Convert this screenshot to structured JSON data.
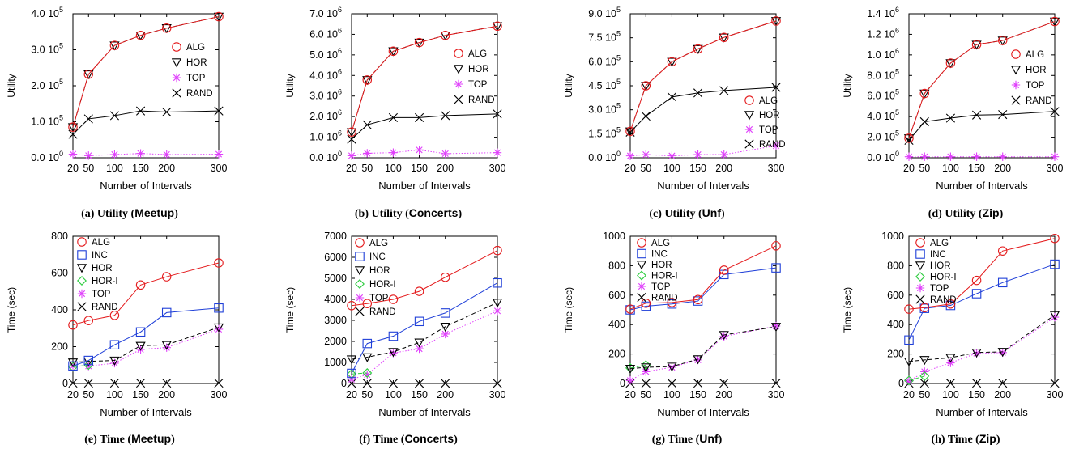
{
  "figure": {
    "captions": [
      {
        "prefix": "(a) Utility (",
        "name": "Meetup",
        "suffix": ")"
      },
      {
        "prefix": "(b) Utility (",
        "name": "Concerts",
        "suffix": ")"
      },
      {
        "prefix": "(c) Utility (",
        "name": "Unf",
        "suffix": ")"
      },
      {
        "prefix": "(d) Utility (",
        "name": "Zip",
        "suffix": ")"
      },
      {
        "prefix": "(e) Time (",
        "name": "Meetup",
        "suffix": ")"
      },
      {
        "prefix": "(f) Time (",
        "name": "Concerts",
        "suffix": ")"
      },
      {
        "prefix": "(g) Time (",
        "name": "Unf",
        "suffix": ")"
      },
      {
        "prefix": "(h) Time (",
        "name": "Zip",
        "suffix": ")"
      }
    ]
  },
  "styles": {
    "ALG": {
      "color": "#e41a1c",
      "marker": "circle",
      "dash": "solid"
    },
    "INC": {
      "color": "#1f3fd8",
      "marker": "square",
      "dash": "solid"
    },
    "HOR": {
      "color": "#000000",
      "marker": "triangle-down",
      "dash": "dashed"
    },
    "HOR-I": {
      "color": "#2ecc40",
      "marker": "diamond",
      "dash": "dashed"
    },
    "TOP": {
      "color": "#e040fb",
      "marker": "star",
      "dash": "dotted"
    },
    "RAND": {
      "color": "#000000",
      "marker": "x",
      "dash": "solid"
    }
  },
  "chart_data": [
    {
      "type": "line",
      "panel": "a",
      "xlabel": "Number of Intervals",
      "ylabel": "Utility",
      "x": [
        20,
        50,
        100,
        150,
        200,
        300
      ],
      "xlim": [
        20,
        300
      ],
      "ylim": [
        0,
        400000
      ],
      "yticks": [
        {
          "v": 0,
          "mant": "0.0",
          "exp": "0"
        },
        {
          "v": 100000,
          "mant": "1.0",
          "exp": "5"
        },
        {
          "v": 200000,
          "mant": "2.0",
          "exp": "5"
        },
        {
          "v": 300000,
          "mant": "3.0",
          "exp": "5"
        },
        {
          "v": 400000,
          "mant": "4.0",
          "exp": "5"
        }
      ],
      "legend": [
        "ALG",
        "HOR",
        "TOP",
        "RAND"
      ],
      "series": [
        {
          "name": "ALG",
          "values": [
            85000,
            232000,
            312000,
            340000,
            360000,
            392000
          ]
        },
        {
          "name": "HOR",
          "values": [
            85000,
            232000,
            312000,
            340000,
            360000,
            392000
          ]
        },
        {
          "name": "TOP",
          "values": [
            10000,
            6000,
            9000,
            12000,
            9000,
            10000
          ]
        },
        {
          "name": "RAND",
          "values": [
            65000,
            108000,
            117000,
            130000,
            127000,
            130000
          ]
        }
      ]
    },
    {
      "type": "line",
      "panel": "b",
      "xlabel": "Number of Intervals",
      "ylabel": "Utility",
      "x": [
        20,
        50,
        100,
        150,
        200,
        300
      ],
      "xlim": [
        20,
        300
      ],
      "ylim": [
        0,
        7000000
      ],
      "yticks": [
        {
          "v": 0,
          "mant": "0.0",
          "exp": "0"
        },
        {
          "v": 1000000,
          "mant": "1.0",
          "exp": "6"
        },
        {
          "v": 2000000,
          "mant": "2.0",
          "exp": "6"
        },
        {
          "v": 3000000,
          "mant": "3.0",
          "exp": "6"
        },
        {
          "v": 4000000,
          "mant": "4.0",
          "exp": "6"
        },
        {
          "v": 5000000,
          "mant": "5.0",
          "exp": "6"
        },
        {
          "v": 6000000,
          "mant": "6.0",
          "exp": "6"
        },
        {
          "v": 7000000,
          "mant": "7.0",
          "exp": "6"
        }
      ],
      "legend": [
        "ALG",
        "HOR",
        "TOP",
        "RAND"
      ],
      "series": [
        {
          "name": "ALG",
          "values": [
            1250000,
            3780000,
            5180000,
            5600000,
            5950000,
            6400000
          ]
        },
        {
          "name": "HOR",
          "values": [
            1250000,
            3780000,
            5180000,
            5600000,
            5950000,
            6400000
          ]
        },
        {
          "name": "TOP",
          "values": [
            100000,
            220000,
            250000,
            380000,
            200000,
            250000
          ]
        },
        {
          "name": "RAND",
          "values": [
            900000,
            1600000,
            1950000,
            1950000,
            2050000,
            2130000
          ]
        }
      ]
    },
    {
      "type": "line",
      "panel": "c",
      "xlabel": "Number of Intervals",
      "ylabel": "Utility",
      "x": [
        20,
        50,
        100,
        150,
        200,
        300
      ],
      "xlim": [
        20,
        300
      ],
      "ylim": [
        0,
        900000
      ],
      "yticks": [
        {
          "v": 0,
          "mant": "0.0",
          "exp": "0"
        },
        {
          "v": 150000,
          "mant": "1.5",
          "exp": "5"
        },
        {
          "v": 300000,
          "mant": "3.0",
          "exp": "5"
        },
        {
          "v": 450000,
          "mant": "4.5",
          "exp": "5"
        },
        {
          "v": 600000,
          "mant": "6.0",
          "exp": "5"
        },
        {
          "v": 750000,
          "mant": "7.5",
          "exp": "5"
        },
        {
          "v": 900000,
          "mant": "9.0",
          "exp": "5"
        }
      ],
      "legend": [
        "ALG",
        "HOR",
        "TOP",
        "RAND"
      ],
      "series": [
        {
          "name": "ALG",
          "values": [
            165000,
            450000,
            600000,
            680000,
            752000,
            855000
          ]
        },
        {
          "name": "HOR",
          "values": [
            165000,
            450000,
            600000,
            680000,
            752000,
            855000
          ]
        },
        {
          "name": "TOP",
          "values": [
            12000,
            20000,
            12000,
            20000,
            20000,
            75000
          ]
        },
        {
          "name": "RAND",
          "values": [
            160000,
            260000,
            380000,
            405000,
            420000,
            440000
          ]
        }
      ]
    },
    {
      "type": "line",
      "panel": "d",
      "xlabel": "Number of Intervals",
      "ylabel": "Utility",
      "x": [
        20,
        50,
        100,
        150,
        200,
        300
      ],
      "xlim": [
        20,
        300
      ],
      "ylim": [
        0,
        1400000
      ],
      "yticks": [
        {
          "v": 0,
          "mant": "0.0",
          "exp": "0"
        },
        {
          "v": 200000,
          "mant": "2.0",
          "exp": "5"
        },
        {
          "v": 400000,
          "mant": "4.0",
          "exp": "5"
        },
        {
          "v": 600000,
          "mant": "6.0",
          "exp": "5"
        },
        {
          "v": 800000,
          "mant": "8.0",
          "exp": "5"
        },
        {
          "v": 1000000,
          "mant": "1.0",
          "exp": "6"
        },
        {
          "v": 1200000,
          "mant": "1.2",
          "exp": "6"
        },
        {
          "v": 1400000,
          "mant": "1.4",
          "exp": "6"
        }
      ],
      "legend": [
        "ALG",
        "HOR",
        "TOP",
        "RAND"
      ],
      "series": [
        {
          "name": "ALG",
          "values": [
            190000,
            625000,
            920000,
            1100000,
            1140000,
            1325000
          ]
        },
        {
          "name": "HOR",
          "values": [
            190000,
            625000,
            920000,
            1100000,
            1140000,
            1325000
          ]
        },
        {
          "name": "TOP",
          "values": [
            10000,
            10000,
            10000,
            10000,
            10000,
            10000
          ]
        },
        {
          "name": "RAND",
          "values": [
            170000,
            350000,
            385000,
            415000,
            420000,
            450000
          ]
        }
      ]
    },
    {
      "type": "line",
      "panel": "e",
      "xlabel": "Number of Intervals",
      "ylabel": "Time (sec)",
      "x": [
        20,
        50,
        100,
        150,
        200,
        300
      ],
      "xlim": [
        20,
        300
      ],
      "ylim": [
        0,
        800
      ],
      "yticks": [
        {
          "v": 0,
          "mant": "0"
        },
        {
          "v": 200,
          "mant": "200"
        },
        {
          "v": 400,
          "mant": "400"
        },
        {
          "v": 600,
          "mant": "600"
        },
        {
          "v": 800,
          "mant": "800"
        }
      ],
      "legend": [
        "ALG",
        "INC",
        "HOR",
        "HOR-I",
        "TOP",
        "RAND"
      ],
      "series": [
        {
          "name": "ALG",
          "values": [
            318,
            342,
            370,
            535,
            580,
            655
          ]
        },
        {
          "name": "INC",
          "values": [
            95,
            125,
            210,
            280,
            385,
            410
          ]
        },
        {
          "name": "HOR",
          "values": [
            115,
            120,
            125,
            205,
            210,
            305
          ]
        },
        {
          "name": "HOR-I",
          "values": [
            90,
            100,
            null,
            null,
            null,
            null
          ]
        },
        {
          "name": "TOP",
          "values": [
            95,
            95,
            110,
            185,
            195,
            295
          ]
        },
        {
          "name": "RAND",
          "values": [
            2,
            2,
            2,
            2,
            2,
            2
          ]
        }
      ]
    },
    {
      "type": "line",
      "panel": "f",
      "xlabel": "Number of Intervals",
      "ylabel": "Time (sec)",
      "x": [
        20,
        50,
        100,
        150,
        200,
        300
      ],
      "xlim": [
        20,
        300
      ],
      "ylim": [
        0,
        7000
      ],
      "yticks": [
        {
          "v": 0,
          "mant": "0"
        },
        {
          "v": 1000,
          "mant": "1000"
        },
        {
          "v": 2000,
          "mant": "2000"
        },
        {
          "v": 3000,
          "mant": "3000"
        },
        {
          "v": 4000,
          "mant": "4000"
        },
        {
          "v": 5000,
          "mant": "5000"
        },
        {
          "v": 6000,
          "mant": "6000"
        },
        {
          "v": 7000,
          "mant": "7000"
        }
      ],
      "legend": [
        "ALG",
        "INC",
        "HOR",
        "HOR-I",
        "TOP",
        "RAND"
      ],
      "series": [
        {
          "name": "ALG",
          "values": [
            3700,
            3800,
            4000,
            4380,
            5050,
            6320
          ]
        },
        {
          "name": "INC",
          "values": [
            480,
            1900,
            2250,
            2950,
            3350,
            4780
          ]
        },
        {
          "name": "HOR",
          "values": [
            1150,
            1250,
            1500,
            1950,
            2700,
            3850
          ]
        },
        {
          "name": "HOR-I",
          "values": [
            450,
            500,
            null,
            null,
            null,
            null
          ]
        },
        {
          "name": "TOP",
          "values": [
            200,
            420,
            1450,
            1650,
            2350,
            3450
          ]
        },
        {
          "name": "RAND",
          "values": [
            5,
            5,
            5,
            5,
            5,
            5
          ]
        }
      ]
    },
    {
      "type": "line",
      "panel": "g",
      "xlabel": "Number of Intervals",
      "ylabel": "Time (sec)",
      "x": [
        20,
        50,
        100,
        150,
        200,
        300
      ],
      "xlim": [
        20,
        300
      ],
      "ylim": [
        0,
        1000
      ],
      "yticks": [
        {
          "v": 0,
          "mant": "0"
        },
        {
          "v": 200,
          "mant": "200"
        },
        {
          "v": 400,
          "mant": "400"
        },
        {
          "v": 600,
          "mant": "600"
        },
        {
          "v": 800,
          "mant": "800"
        },
        {
          "v": 1000,
          "mant": "1000"
        }
      ],
      "legend": [
        "ALG",
        "INC",
        "HOR",
        "HOR-I",
        "TOP",
        "RAND"
      ],
      "series": [
        {
          "name": "ALG",
          "values": [
            505,
            545,
            550,
            570,
            770,
            935
          ]
        },
        {
          "name": "INC",
          "values": [
            500,
            525,
            540,
            560,
            740,
            785
          ]
        },
        {
          "name": "HOR",
          "values": [
            100,
            110,
            115,
            165,
            330,
            385
          ]
        },
        {
          "name": "HOR-I",
          "values": [
            105,
            125,
            null,
            null,
            null,
            null
          ]
        },
        {
          "name": "TOP",
          "values": [
            20,
            80,
            110,
            160,
            320,
            390
          ]
        },
        {
          "name": "RAND",
          "values": [
            2,
            2,
            2,
            2,
            2,
            2
          ]
        }
      ]
    },
    {
      "type": "line",
      "panel": "h",
      "xlabel": "Number of Intervals",
      "ylabel": "Time (sec)",
      "x": [
        20,
        50,
        100,
        150,
        200,
        300
      ],
      "xlim": [
        20,
        300
      ],
      "ylim": [
        0,
        1000
      ],
      "yticks": [
        {
          "v": 0,
          "mant": "0"
        },
        {
          "v": 200,
          "mant": "200"
        },
        {
          "v": 400,
          "mant": "400"
        },
        {
          "v": 600,
          "mant": "600"
        },
        {
          "v": 800,
          "mant": "800"
        },
        {
          "v": 1000,
          "mant": "1000"
        }
      ],
      "legend": [
        "ALG",
        "INC",
        "HOR",
        "HOR-I",
        "TOP",
        "RAND"
      ],
      "series": [
        {
          "name": "ALG",
          "values": [
            505,
            515,
            540,
            700,
            900,
            985
          ]
        },
        {
          "name": "INC",
          "values": [
            295,
            510,
            530,
            610,
            685,
            810
          ]
        },
        {
          "name": "HOR",
          "values": [
            150,
            160,
            175,
            210,
            215,
            465
          ]
        },
        {
          "name": "HOR-I",
          "values": [
            20,
            50,
            null,
            null,
            null,
            null
          ]
        },
        {
          "name": "TOP",
          "values": [
            15,
            80,
            140,
            205,
            210,
            450
          ]
        },
        {
          "name": "RAND",
          "values": [
            2,
            2,
            2,
            2,
            2,
            2
          ]
        }
      ]
    }
  ]
}
